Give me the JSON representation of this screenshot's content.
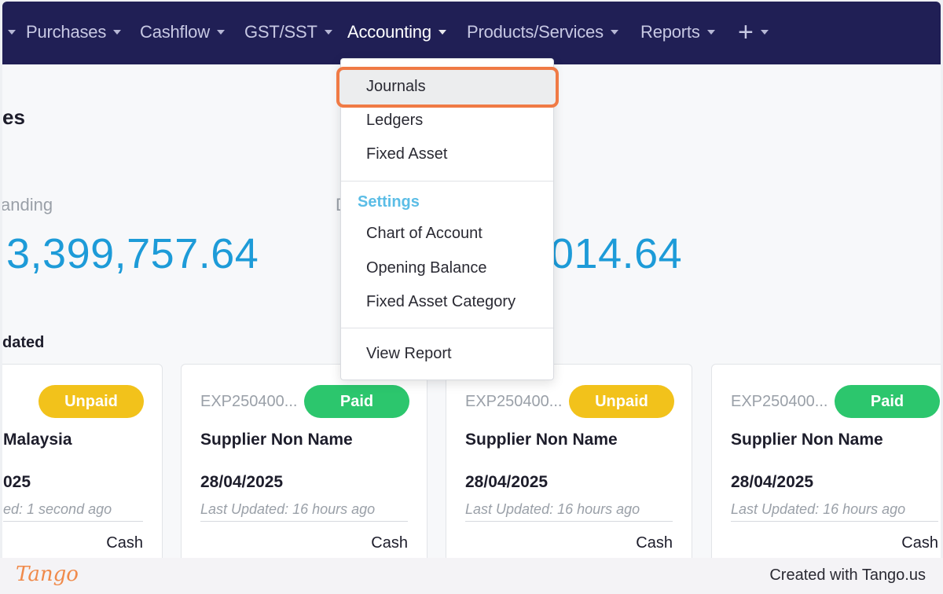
{
  "nav": {
    "items": [
      {
        "label": "Purchases"
      },
      {
        "label": "Cashflow"
      },
      {
        "label": "GST/SST"
      },
      {
        "label": "Accounting"
      },
      {
        "label": "Products/Services"
      },
      {
        "label": "Reports"
      }
    ],
    "plus_label": "+"
  },
  "page": {
    "title_fragment": "es",
    "stat_left_label": "anding",
    "stat_left_value": "3,399,757.64",
    "stat_right_label": "D",
    "stat_right_value_prefix": "",
    "stat_right_value": "014.64",
    "section_label": "dated"
  },
  "dropdown": {
    "items": [
      "Journals",
      "Ledgers",
      "Fixed Asset"
    ],
    "settings_header": "Settings",
    "settings_items": [
      "Chart of Account",
      "Opening Balance",
      "Fixed Asset Category"
    ],
    "report_item": "View Report"
  },
  "cards": [
    {
      "code": "",
      "status": "Unpaid",
      "name": "Malaysia",
      "date": "025",
      "updated": "ed: 1 second ago",
      "method": "Cash"
    },
    {
      "code": "EXP250400...",
      "status": "Paid",
      "name": "Supplier Non Name",
      "date": "28/04/2025",
      "updated": "Last Updated: 16 hours ago",
      "method": "Cash"
    },
    {
      "code": "EXP250400...",
      "status": "Unpaid",
      "name": "Supplier Non Name",
      "date": "28/04/2025",
      "updated": "Last Updated: 16 hours ago",
      "method": "Cash"
    },
    {
      "code": "EXP250400...",
      "status": "Paid",
      "name": "Supplier Non Name",
      "date": "28/04/2025",
      "updated": "Last Updated: 16 hours ago",
      "method": "Cash"
    }
  ],
  "footer": {
    "logo": "Tango",
    "credit": "Created with Tango.us"
  },
  "colors": {
    "nav_bg": "#201f55",
    "accent_blue": "#1d9bd8",
    "unpaid": "#f2c21b",
    "paid": "#2cc66d",
    "highlight": "#f07a45"
  }
}
